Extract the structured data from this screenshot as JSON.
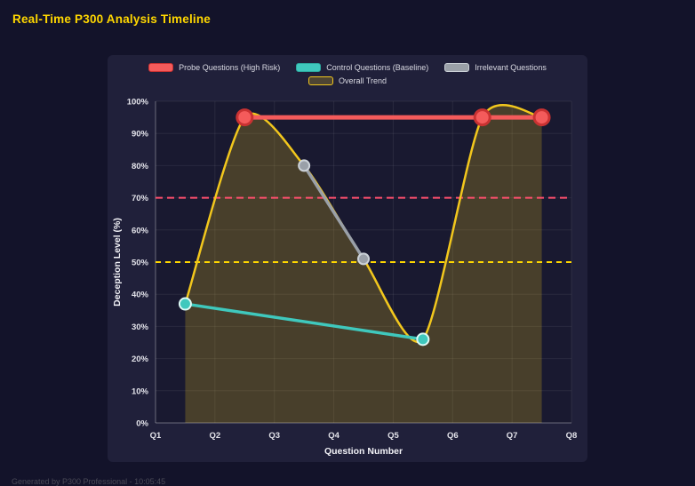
{
  "title": "Real-Time P300 Analysis Timeline",
  "footer": "Generated by P300 Professional - 10:05:45",
  "colors": {
    "background": "#13132a",
    "card": "#20203a",
    "plot": "#191930",
    "title": "#ffd700",
    "grid": "rgba(255,255,255,0.07)",
    "axis": "rgba(255,255,255,0.35)",
    "tick_text": "#e3e3ea",
    "axis_title_text": "#f2f2f7",
    "legend_text": "#d9d9e2",
    "footer_text": "#4a4a57"
  },
  "chart_data": {
    "type": "line",
    "title": "Real-Time P300 Analysis Timeline",
    "xlabel": "Question Number",
    "ylabel": "Deception Level (%)",
    "x": {
      "label": "Question Number",
      "min": 1,
      "max": 8,
      "ticks": [
        "Q1",
        "Q2",
        "Q3",
        "Q4",
        "Q5",
        "Q6",
        "Q7",
        "Q8"
      ]
    },
    "y": {
      "label": "Deception Level (%)",
      "min": 0,
      "max": 100,
      "step": 10,
      "suffix": "%"
    },
    "ylim": [
      0,
      100
    ],
    "legend_position": "top",
    "grid": true,
    "series": [
      {
        "name": "Probe Questions (High Risk)",
        "color": "#f45b5b",
        "border": "#c93232",
        "line_width": 5,
        "marker_radius": 8.5,
        "marker_stroke": 3,
        "points": [
          [
            2.5,
            95
          ],
          [
            6.5,
            95
          ],
          [
            7.5,
            95
          ]
        ]
      },
      {
        "name": "Control Questions (Baseline)",
        "color": "#3fc8bd",
        "border": "#dcfaf6",
        "swatch_border": "#2da99f",
        "line_width": 3.5,
        "marker_radius": 6.5,
        "marker_stroke": 2,
        "points": [
          [
            1.5,
            37
          ],
          [
            5.5,
            26
          ]
        ]
      },
      {
        "name": "Irrelevant Questions",
        "color": "#9aa0a8",
        "border": "#ccd2d8",
        "line_width": 3.5,
        "marker_radius": 6,
        "marker_stroke": 2,
        "points": [
          [
            3.5,
            80
          ],
          [
            4.5,
            51
          ]
        ]
      },
      {
        "name": "Overall Trend",
        "color": "#f2c71d",
        "fill": "rgba(242,199,29,0.22)",
        "line_width": 2.5,
        "marker_radius": 0,
        "marker_stroke": 0,
        "smooth": true,
        "points": [
          [
            1.5,
            37
          ],
          [
            2.5,
            95
          ],
          [
            3.5,
            80
          ],
          [
            4.5,
            51
          ],
          [
            5.5,
            26
          ],
          [
            6.5,
            95
          ],
          [
            7.5,
            95
          ]
        ]
      }
    ],
    "thresholds": [
      {
        "value": 70,
        "color": "#ff4f6e",
        "dash": [
          8,
          5
        ]
      },
      {
        "value": 50,
        "color": "#ffd700",
        "dash": [
          6,
          5
        ]
      }
    ]
  }
}
